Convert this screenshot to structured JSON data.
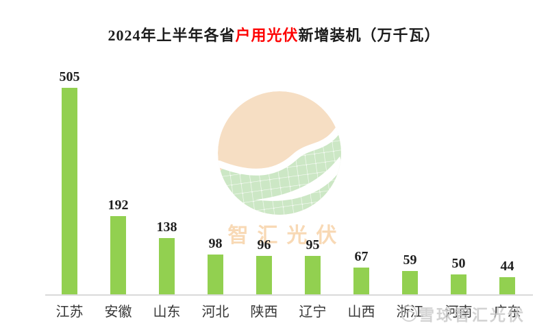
{
  "title": {
    "prefix": "2024年上半年各省",
    "highlight": "户用光伏",
    "suffix": "新增装机（万千瓦）"
  },
  "chart_data": {
    "type": "bar",
    "title": "2024年上半年各省户用光伏新增装机（万千瓦）",
    "categories": [
      "江苏",
      "安徽",
      "山东",
      "河北",
      "陕西",
      "辽宁",
      "山西",
      "浙江",
      "河南",
      "广东"
    ],
    "values": [
      505,
      192,
      138,
      98,
      96,
      95,
      67,
      59,
      50,
      44
    ],
    "xlabel": "",
    "ylabel": "",
    "ylim": [
      0,
      505
    ],
    "grid": false,
    "legend": "none",
    "value_labels": true,
    "bar_color": "#92d050"
  },
  "watermark_center": {
    "logo_text": "智汇光伏"
  },
  "watermark_corner": {
    "text": "雪球智汇光伏",
    "icon": "xueqiu-snowball-icon"
  },
  "colors": {
    "bar": "#92d050",
    "title_highlight": "#fe0000",
    "axis_line": "#d9d9d9",
    "logo_peach": "#f6dec3",
    "logo_green": "#cce7c5",
    "logo_text": "#f8d9b5",
    "corner_watermark": "#c6c6c6"
  }
}
